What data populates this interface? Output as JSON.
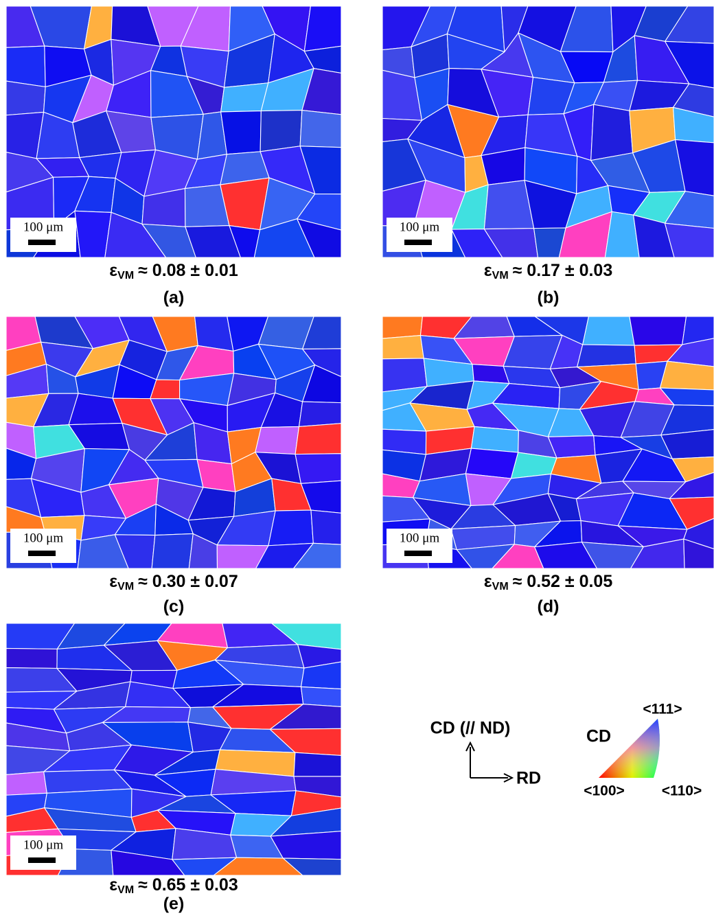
{
  "panels": [
    {
      "label": "(a)",
      "scale_bar": "100 μm",
      "strain": {
        "symbol": "ε",
        "subscript": "VM",
        "value": "≈ 0.08 ± 0.01"
      }
    },
    {
      "label": "(b)",
      "scale_bar": "100 μm",
      "strain": {
        "symbol": "ε",
        "subscript": "VM",
        "value": "≈ 0.17 ± 0.03"
      }
    },
    {
      "label": "(c)",
      "scale_bar": "100 μm",
      "strain": {
        "symbol": "ε",
        "subscript": "VM",
        "value": "≈ 0.30 ± 0.07"
      }
    },
    {
      "label": "(d)",
      "scale_bar": "100 μm",
      "strain": {
        "symbol": "ε",
        "subscript": "VM",
        "value": "≈ 0.52 ± 0.05"
      }
    },
    {
      "label": "(e)",
      "scale_bar": "100 μm",
      "strain": {
        "symbol": "ε",
        "subscript": "VM",
        "value": "≈ 0.65 ± 0.03"
      }
    }
  ],
  "axes": {
    "vertical": "CD (// ND)",
    "horizontal": "RD"
  },
  "ipf_legend": {
    "direction": "CD",
    "corners": {
      "top": "<111>",
      "left": "<100>",
      "right": "<110>"
    }
  }
}
